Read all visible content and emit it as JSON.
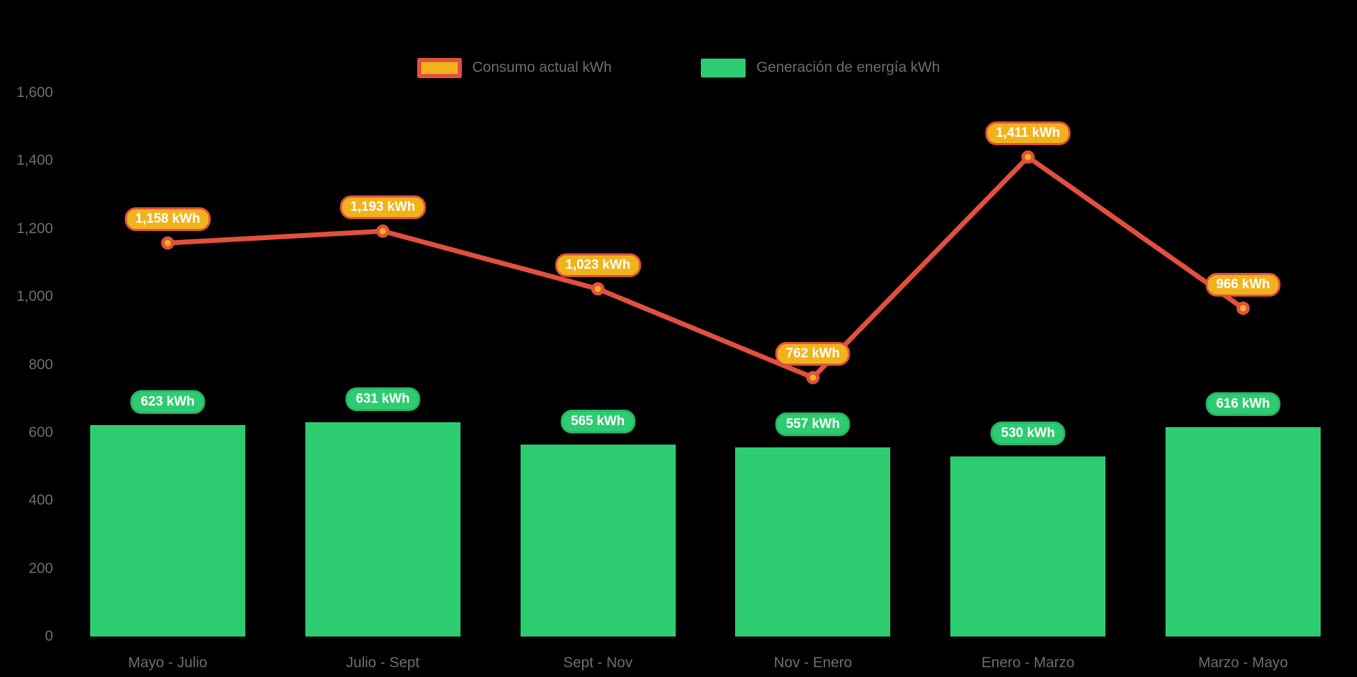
{
  "page": {
    "background": "#000000",
    "text_color": "#6e6e6e"
  },
  "chart_data": {
    "type": "combo-line-bar",
    "title": "",
    "xlabel": "",
    "ylabel": "",
    "grid": false,
    "legend_position": "top",
    "background": "#000000",
    "categories": [
      "Mayo - Julio",
      "Julio - Sept",
      "Sept - Nov",
      "Nov - Enero",
      "Enero - Marzo",
      "Marzo - Mayo"
    ],
    "series": [
      {
        "name": "Consumo actual kWh",
        "type": "line",
        "values": [
          1158,
          1193,
          1023,
          762,
          1411,
          966
        ],
        "point_labels": [
          "1,158 kWh",
          "1,193 kWh",
          "1,023 kWh",
          "762 kWh",
          "1,411 kWh",
          "966 kWh"
        ],
        "color": "#e2503e",
        "marker_fill": "#f1b31c"
      },
      {
        "name": "Generación de energía kWh",
        "type": "bar",
        "values": [
          623,
          631,
          565,
          557,
          530,
          616
        ],
        "point_labels": [
          "623 kWh",
          "631 kWh",
          "565 kWh",
          "557 kWh",
          "530 kWh",
          "616 kWh"
        ],
        "color": "#2ecc71",
        "label_border": "#29b565"
      }
    ],
    "y_axis": {
      "min": 0,
      "max": 1600,
      "tick_step": 200,
      "tick_labels": [
        "0",
        "200",
        "400",
        "600",
        "800",
        "1,000",
        "1,200",
        "1,400",
        "1,600"
      ]
    },
    "label_unit": "kWh"
  }
}
